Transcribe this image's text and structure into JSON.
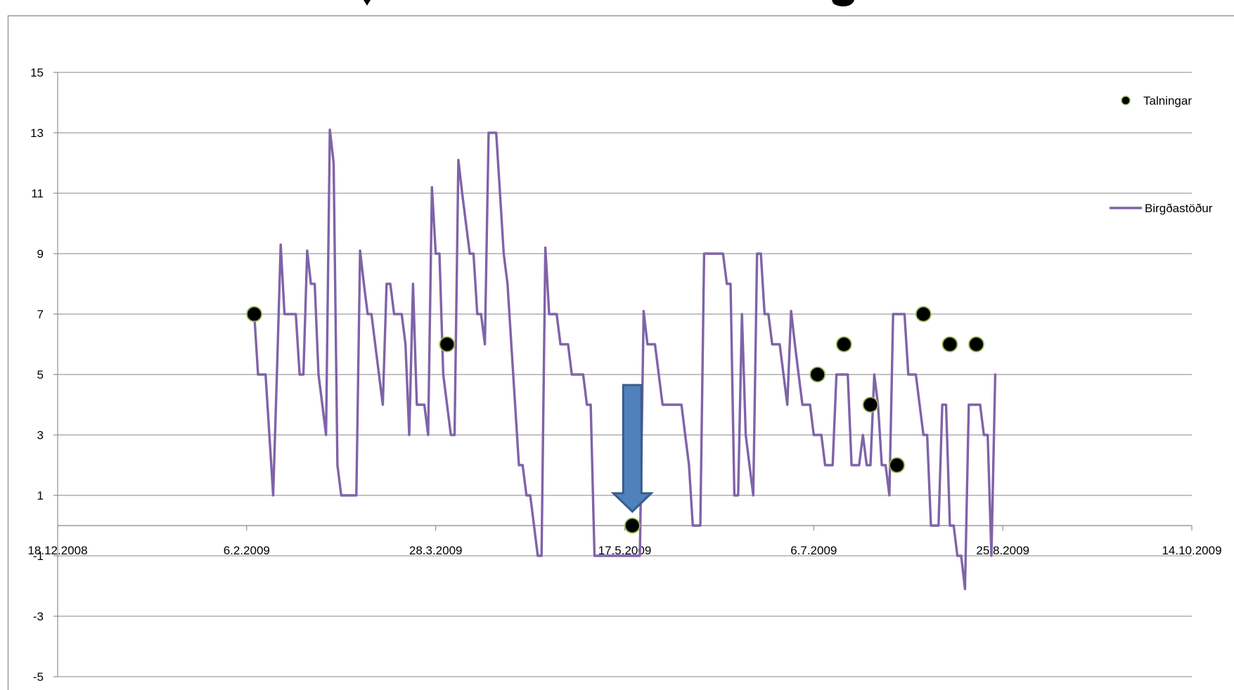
{
  "chart_data": {
    "type": "line",
    "title": "",
    "xlabel": "",
    "ylabel": "",
    "x_axis": {
      "type": "date",
      "range": [
        "2008-12-18",
        "2009-10-14"
      ],
      "tick_dates": [
        "2008-12-18",
        "2009-02-06",
        "2009-03-28",
        "2009-05-17",
        "2009-07-06",
        "2009-08-25",
        "2009-10-14"
      ],
      "tick_labels": [
        "18.12.2008",
        "6.2.2009",
        "28.3.2009",
        "17.5.2009",
        "6.7.2009",
        "25.8.2009",
        "14.10.2009"
      ]
    },
    "y_axis": {
      "range": [
        -5,
        15
      ],
      "ticks": [
        -5,
        -3,
        -1,
        1,
        3,
        5,
        7,
        9,
        11,
        13,
        15
      ],
      "tick_labels": [
        "-5",
        "-3",
        "-1",
        "1",
        "3",
        "5",
        "7",
        "9",
        "11",
        "13",
        "15"
      ],
      "crosses_at": 0
    },
    "grid": "horizontal",
    "legend_position": "right",
    "series": [
      {
        "name": "Birgðastöður",
        "style": "line",
        "color": "#7f63a8",
        "points": [
          [
            "2009-02-08",
            7
          ],
          [
            "2009-02-09",
            5
          ],
          [
            "2009-02-10",
            5
          ],
          [
            "2009-02-11",
            5
          ],
          [
            "2009-02-12",
            3
          ],
          [
            "2009-02-13",
            1
          ],
          [
            "2009-02-14",
            5
          ],
          [
            "2009-02-15",
            9.3
          ],
          [
            "2009-02-16",
            7
          ],
          [
            "2009-02-17",
            7
          ],
          [
            "2009-02-18",
            7
          ],
          [
            "2009-02-19",
            7
          ],
          [
            "2009-02-20",
            5
          ],
          [
            "2009-02-21",
            5
          ],
          [
            "2009-02-22",
            9.1
          ],
          [
            "2009-02-23",
            8
          ],
          [
            "2009-02-24",
            8
          ],
          [
            "2009-02-25",
            5
          ],
          [
            "2009-02-26",
            4
          ],
          [
            "2009-02-27",
            3
          ],
          [
            "2009-02-28",
            13.1
          ],
          [
            "2009-03-01",
            12
          ],
          [
            "2009-03-02",
            2
          ],
          [
            "2009-03-03",
            1
          ],
          [
            "2009-03-04",
            1
          ],
          [
            "2009-03-05",
            1
          ],
          [
            "2009-03-06",
            1
          ],
          [
            "2009-03-07",
            1
          ],
          [
            "2009-03-08",
            9.1
          ],
          [
            "2009-03-09",
            8
          ],
          [
            "2009-03-10",
            7
          ],
          [
            "2009-03-11",
            7
          ],
          [
            "2009-03-12",
            6
          ],
          [
            "2009-03-13",
            5
          ],
          [
            "2009-03-14",
            4
          ],
          [
            "2009-03-15",
            8
          ],
          [
            "2009-03-16",
            8
          ],
          [
            "2009-03-17",
            7
          ],
          [
            "2009-03-18",
            7
          ],
          [
            "2009-03-19",
            7
          ],
          [
            "2009-03-20",
            6
          ],
          [
            "2009-03-21",
            3
          ],
          [
            "2009-03-22",
            8
          ],
          [
            "2009-03-23",
            4
          ],
          [
            "2009-03-24",
            4
          ],
          [
            "2009-03-25",
            4
          ],
          [
            "2009-03-26",
            3
          ],
          [
            "2009-03-27",
            11.2
          ],
          [
            "2009-03-28",
            9
          ],
          [
            "2009-03-29",
            9
          ],
          [
            "2009-03-30",
            5
          ],
          [
            "2009-03-31",
            4
          ],
          [
            "2009-04-01",
            3
          ],
          [
            "2009-04-02",
            3
          ],
          [
            "2009-04-03",
            12.1
          ],
          [
            "2009-04-04",
            11
          ],
          [
            "2009-04-05",
            10
          ],
          [
            "2009-04-06",
            9
          ],
          [
            "2009-04-07",
            9
          ],
          [
            "2009-04-08",
            7
          ],
          [
            "2009-04-09",
            7
          ],
          [
            "2009-04-10",
            6
          ],
          [
            "2009-04-11",
            13
          ],
          [
            "2009-04-12",
            13
          ],
          [
            "2009-04-13",
            13
          ],
          [
            "2009-04-14",
            11
          ],
          [
            "2009-04-15",
            9
          ],
          [
            "2009-04-16",
            8
          ],
          [
            "2009-04-17",
            6
          ],
          [
            "2009-04-18",
            4
          ],
          [
            "2009-04-19",
            2
          ],
          [
            "2009-04-20",
            2
          ],
          [
            "2009-04-21",
            1
          ],
          [
            "2009-04-22",
            1
          ],
          [
            "2009-04-23",
            0
          ],
          [
            "2009-04-24",
            -1
          ],
          [
            "2009-04-25",
            -1
          ],
          [
            "2009-04-26",
            9.2
          ],
          [
            "2009-04-27",
            7
          ],
          [
            "2009-04-28",
            7
          ],
          [
            "2009-04-29",
            7
          ],
          [
            "2009-04-30",
            6
          ],
          [
            "2009-05-01",
            6
          ],
          [
            "2009-05-02",
            6
          ],
          [
            "2009-05-03",
            5
          ],
          [
            "2009-05-04",
            5
          ],
          [
            "2009-05-05",
            5
          ],
          [
            "2009-05-06",
            5
          ],
          [
            "2009-05-07",
            4
          ],
          [
            "2009-05-08",
            4
          ],
          [
            "2009-05-09",
            -1
          ],
          [
            "2009-05-10",
            -1
          ],
          [
            "2009-05-11",
            -1
          ],
          [
            "2009-05-12",
            -1
          ],
          [
            "2009-05-13",
            -1
          ],
          [
            "2009-05-14",
            -1
          ],
          [
            "2009-05-15",
            -1
          ],
          [
            "2009-05-16",
            -1
          ],
          [
            "2009-05-17",
            -1
          ],
          [
            "2009-05-18",
            -1
          ],
          [
            "2009-05-19",
            -1
          ],
          [
            "2009-05-20",
            -1
          ],
          [
            "2009-05-21",
            -1
          ],
          [
            "2009-05-22",
            7.1
          ],
          [
            "2009-05-23",
            6
          ],
          [
            "2009-05-24",
            6
          ],
          [
            "2009-05-25",
            6
          ],
          [
            "2009-05-26",
            5
          ],
          [
            "2009-05-27",
            4
          ],
          [
            "2009-05-28",
            4
          ],
          [
            "2009-05-29",
            4
          ],
          [
            "2009-05-30",
            4
          ],
          [
            "2009-05-31",
            4
          ],
          [
            "2009-06-01",
            4
          ],
          [
            "2009-06-02",
            3
          ],
          [
            "2009-06-03",
            2
          ],
          [
            "2009-06-04",
            0
          ],
          [
            "2009-06-05",
            0
          ],
          [
            "2009-06-06",
            0
          ],
          [
            "2009-06-07",
            9
          ],
          [
            "2009-06-08",
            9
          ],
          [
            "2009-06-09",
            9
          ],
          [
            "2009-06-10",
            9
          ],
          [
            "2009-06-11",
            9
          ],
          [
            "2009-06-12",
            9
          ],
          [
            "2009-06-13",
            8
          ],
          [
            "2009-06-14",
            8
          ],
          [
            "2009-06-15",
            1
          ],
          [
            "2009-06-16",
            1
          ],
          [
            "2009-06-17",
            7
          ],
          [
            "2009-06-18",
            3
          ],
          [
            "2009-06-19",
            2
          ],
          [
            "2009-06-20",
            1
          ],
          [
            "2009-06-21",
            9
          ],
          [
            "2009-06-22",
            9
          ],
          [
            "2009-06-23",
            7
          ],
          [
            "2009-06-24",
            7
          ],
          [
            "2009-06-25",
            6
          ],
          [
            "2009-06-26",
            6
          ],
          [
            "2009-06-27",
            6
          ],
          [
            "2009-06-28",
            5
          ],
          [
            "2009-06-29",
            4
          ],
          [
            "2009-06-30",
            7.1
          ],
          [
            "2009-07-01",
            6
          ],
          [
            "2009-07-02",
            5
          ],
          [
            "2009-07-03",
            4
          ],
          [
            "2009-07-04",
            4
          ],
          [
            "2009-07-05",
            4
          ],
          [
            "2009-07-06",
            3
          ],
          [
            "2009-07-07",
            3
          ],
          [
            "2009-07-08",
            3
          ],
          [
            "2009-07-09",
            2
          ],
          [
            "2009-07-10",
            2
          ],
          [
            "2009-07-11",
            2
          ],
          [
            "2009-07-12",
            5
          ],
          [
            "2009-07-13",
            5
          ],
          [
            "2009-07-14",
            5
          ],
          [
            "2009-07-15",
            5
          ],
          [
            "2009-07-16",
            2
          ],
          [
            "2009-07-17",
            2
          ],
          [
            "2009-07-18",
            2
          ],
          [
            "2009-07-19",
            3
          ],
          [
            "2009-07-20",
            2
          ],
          [
            "2009-07-21",
            2
          ],
          [
            "2009-07-22",
            5
          ],
          [
            "2009-07-23",
            4
          ],
          [
            "2009-07-24",
            2
          ],
          [
            "2009-07-25",
            2
          ],
          [
            "2009-07-26",
            1
          ],
          [
            "2009-07-27",
            7
          ],
          [
            "2009-07-28",
            7
          ],
          [
            "2009-07-29",
            7
          ],
          [
            "2009-07-30",
            7
          ],
          [
            "2009-07-31",
            5
          ],
          [
            "2009-08-01",
            5
          ],
          [
            "2009-08-02",
            5
          ],
          [
            "2009-08-03",
            4
          ],
          [
            "2009-08-04",
            3
          ],
          [
            "2009-08-05",
            3
          ],
          [
            "2009-08-06",
            0
          ],
          [
            "2009-08-07",
            0
          ],
          [
            "2009-08-08",
            0
          ],
          [
            "2009-08-09",
            4
          ],
          [
            "2009-08-10",
            4
          ],
          [
            "2009-08-11",
            0
          ],
          [
            "2009-08-12",
            0
          ],
          [
            "2009-08-13",
            -1
          ],
          [
            "2009-08-14",
            -1
          ],
          [
            "2009-08-15",
            -2.1
          ],
          [
            "2009-08-16",
            4
          ],
          [
            "2009-08-17",
            4
          ],
          [
            "2009-08-18",
            4
          ],
          [
            "2009-08-19",
            4
          ],
          [
            "2009-08-20",
            3
          ],
          [
            "2009-08-21",
            3
          ],
          [
            "2009-08-22",
            -1
          ],
          [
            "2009-08-23",
            5
          ]
        ]
      },
      {
        "name": "Talningar",
        "style": "marker",
        "color": "#000000",
        "outline": "#9bbb59",
        "points": [
          [
            "2009-02-08",
            7
          ],
          [
            "2009-03-31",
            6
          ],
          [
            "2009-05-19",
            0
          ],
          [
            "2009-07-07",
            5
          ],
          [
            "2009-07-14",
            6
          ],
          [
            "2009-07-21",
            4
          ],
          [
            "2009-07-28",
            2
          ],
          [
            "2009-08-04",
            7
          ],
          [
            "2009-08-11",
            6
          ],
          [
            "2009-08-18",
            6
          ]
        ]
      }
    ],
    "annotations": [
      {
        "type": "arrow",
        "direction": "down",
        "color": "#4f81bd",
        "points_to": [
          "2009-05-19",
          0
        ]
      }
    ]
  }
}
